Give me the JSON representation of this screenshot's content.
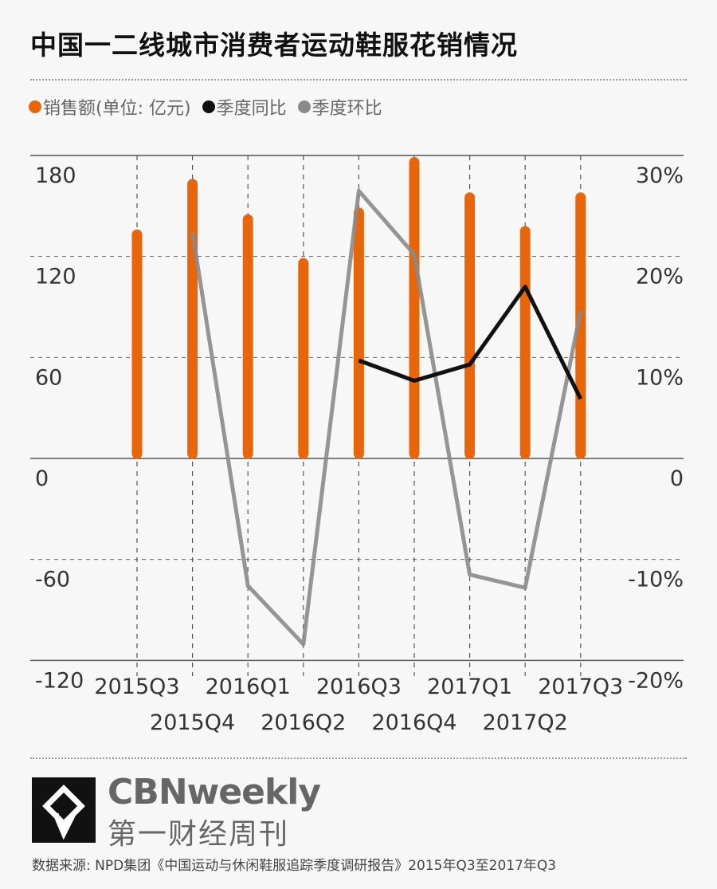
{
  "title": "中国一二线城市消费者运动鞋服花销情况",
  "legend": [
    {
      "label": "销售额(单位: 亿元)",
      "color": "#e8650a"
    },
    {
      "label": "季度同比",
      "color": "#111111"
    },
    {
      "label": "季度环比",
      "color": "#8a8a8a"
    }
  ],
  "chart_data": {
    "type": "bar+line",
    "categories": [
      "2015Q3",
      "2015Q4",
      "2016Q1",
      "2016Q2",
      "2016Q3",
      "2016Q4",
      "2017Q1",
      "2017Q2",
      "2017Q3"
    ],
    "left_axis": {
      "ticks": [
        "180",
        "120",
        "60",
        "0",
        "-60",
        "-120"
      ],
      "range": [
        -120,
        180
      ]
    },
    "right_axis": {
      "ticks": [
        "30%",
        "20%",
        "10%",
        "0",
        "-10%",
        "-20%"
      ],
      "range": [
        -20,
        30
      ]
    },
    "grid": "dashed",
    "series": [
      {
        "name": "销售额(单位: 亿元)",
        "type": "bar",
        "axis": "left",
        "color": "#e8650a",
        "values": [
          133,
          163,
          142,
          116,
          146,
          176,
          155,
          135,
          155
        ]
      },
      {
        "name": "季度同比",
        "type": "line",
        "axis": "right",
        "unit": "%",
        "color": "#111111",
        "values": [
          null,
          null,
          null,
          null,
          9.7,
          7.7,
          9.3,
          17.0,
          5.9
        ]
      },
      {
        "name": "季度环比",
        "type": "line",
        "axis": "right",
        "unit": "%",
        "color": "#8a8a8a",
        "values": [
          null,
          22.4,
          -12.6,
          -18.4,
          26.5,
          20.2,
          -11.5,
          -12.8,
          14.6
        ]
      }
    ]
  },
  "brand": {
    "name": "CBNweekly",
    "name_cn": "第一财经周刊"
  },
  "source": "数据来源: NPD集团《中国运动与休闲鞋服追踪季度调研报告》2015年Q3至2017年Q3"
}
